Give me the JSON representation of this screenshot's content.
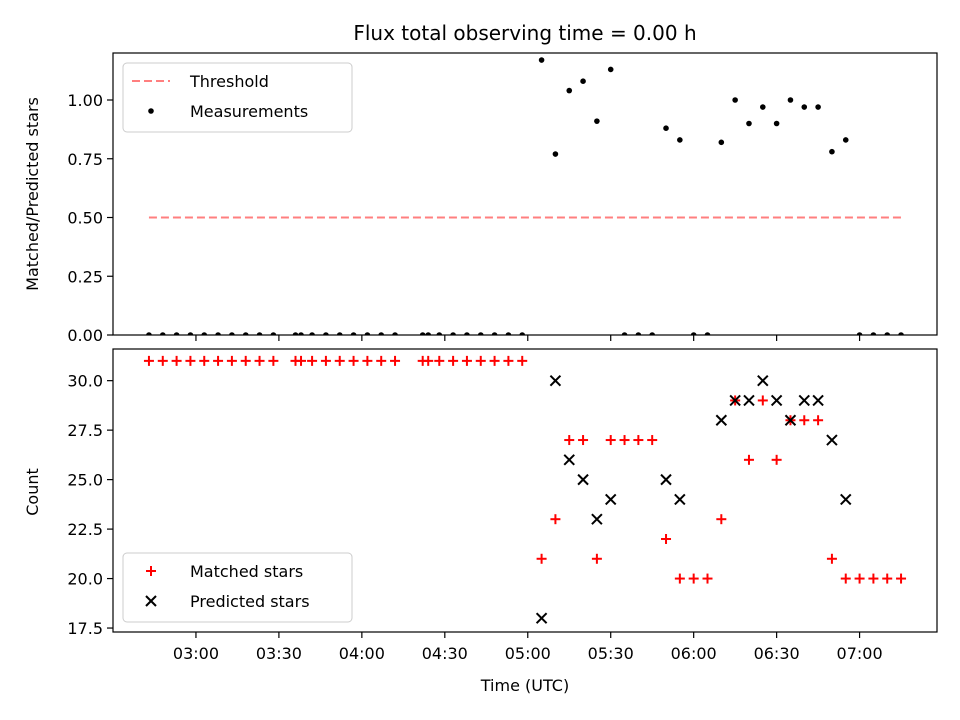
{
  "title": "Flux total observing time = 0.00 h",
  "x_axis": {
    "label": "Time (UTC)",
    "ticks": [
      "03:00",
      "03:30",
      "04:00",
      "04:30",
      "05:00",
      "05:30",
      "06:00",
      "06:30",
      "07:00"
    ]
  },
  "chart_data": [
    {
      "type": "scatter",
      "panel": "top",
      "ylabel": "Matched/Predicted stars",
      "xlim": [
        "02:30",
        "07:28"
      ],
      "ylim": [
        0,
        1.2
      ],
      "yticks": [
        "0.00",
        "0.25",
        "0.50",
        "0.75",
        "1.00"
      ],
      "legend_position": "upper-left",
      "series": [
        {
          "name": "Threshold",
          "kind": "dashed-line",
          "color": "#ff7f7f",
          "points": [
            {
              "t": "02:43",
              "v": 0.5
            },
            {
              "t": "07:15",
              "v": 0.5
            }
          ]
        },
        {
          "name": "Measurements",
          "kind": "dot",
          "color": "#000000",
          "points": [
            {
              "t": "02:43",
              "v": 0
            },
            {
              "t": "02:48",
              "v": 0
            },
            {
              "t": "02:53",
              "v": 0
            },
            {
              "t": "02:58",
              "v": 0
            },
            {
              "t": "03:03",
              "v": 0
            },
            {
              "t": "03:08",
              "v": 0
            },
            {
              "t": "03:13",
              "v": 0
            },
            {
              "t": "03:18",
              "v": 0
            },
            {
              "t": "03:23",
              "v": 0
            },
            {
              "t": "03:28",
              "v": 0
            },
            {
              "t": "03:36",
              "v": 0
            },
            {
              "t": "03:38",
              "v": 0
            },
            {
              "t": "03:42",
              "v": 0
            },
            {
              "t": "03:47",
              "v": 0
            },
            {
              "t": "03:52",
              "v": 0
            },
            {
              "t": "03:57",
              "v": 0
            },
            {
              "t": "04:02",
              "v": 0
            },
            {
              "t": "04:07",
              "v": 0
            },
            {
              "t": "04:12",
              "v": 0
            },
            {
              "t": "04:22",
              "v": 0
            },
            {
              "t": "04:24",
              "v": 0
            },
            {
              "t": "04:28",
              "v": 0
            },
            {
              "t": "04:33",
              "v": 0
            },
            {
              "t": "04:38",
              "v": 0
            },
            {
              "t": "04:43",
              "v": 0
            },
            {
              "t": "04:48",
              "v": 0
            },
            {
              "t": "04:53",
              "v": 0
            },
            {
              "t": "04:58",
              "v": 0
            },
            {
              "t": "05:05",
              "v": 1.17
            },
            {
              "t": "05:10",
              "v": 0.77
            },
            {
              "t": "05:15",
              "v": 1.04
            },
            {
              "t": "05:20",
              "v": 1.08
            },
            {
              "t": "05:25",
              "v": 0.91
            },
            {
              "t": "05:30",
              "v": 1.13
            },
            {
              "t": "05:35",
              "v": 0
            },
            {
              "t": "05:40",
              "v": 0
            },
            {
              "t": "05:45",
              "v": 0
            },
            {
              "t": "05:50",
              "v": 0.88
            },
            {
              "t": "05:55",
              "v": 0.83
            },
            {
              "t": "06:00",
              "v": 0
            },
            {
              "t": "06:05",
              "v": 0
            },
            {
              "t": "06:10",
              "v": 0.82
            },
            {
              "t": "06:15",
              "v": 1.0
            },
            {
              "t": "06:20",
              "v": 0.9
            },
            {
              "t": "06:25",
              "v": 0.97
            },
            {
              "t": "06:30",
              "v": 0.9
            },
            {
              "t": "06:35",
              "v": 1.0
            },
            {
              "t": "06:40",
              "v": 0.97
            },
            {
              "t": "06:45",
              "v": 0.97
            },
            {
              "t": "06:50",
              "v": 0.78
            },
            {
              "t": "06:55",
              "v": 0.83
            },
            {
              "t": "07:00",
              "v": 0
            },
            {
              "t": "07:05",
              "v": 0
            },
            {
              "t": "07:10",
              "v": 0
            },
            {
              "t": "07:15",
              "v": 0
            }
          ]
        }
      ]
    },
    {
      "type": "scatter",
      "panel": "bottom",
      "ylabel": "Count",
      "xlim": [
        "02:30",
        "07:28"
      ],
      "ylim": [
        17.3,
        31.6
      ],
      "yticks": [
        "17.5",
        "20.0",
        "22.5",
        "25.0",
        "27.5",
        "30.0"
      ],
      "legend_position": "lower-left",
      "series": [
        {
          "name": "Matched stars",
          "kind": "plus",
          "color": "#ff0000",
          "points": [
            {
              "t": "02:43",
              "v": 31
            },
            {
              "t": "02:48",
              "v": 31
            },
            {
              "t": "02:53",
              "v": 31
            },
            {
              "t": "02:58",
              "v": 31
            },
            {
              "t": "03:03",
              "v": 31
            },
            {
              "t": "03:08",
              "v": 31
            },
            {
              "t": "03:13",
              "v": 31
            },
            {
              "t": "03:18",
              "v": 31
            },
            {
              "t": "03:23",
              "v": 31
            },
            {
              "t": "03:28",
              "v": 31
            },
            {
              "t": "03:36",
              "v": 31
            },
            {
              "t": "03:38",
              "v": 31
            },
            {
              "t": "03:42",
              "v": 31
            },
            {
              "t": "03:47",
              "v": 31
            },
            {
              "t": "03:52",
              "v": 31
            },
            {
              "t": "03:57",
              "v": 31
            },
            {
              "t": "04:02",
              "v": 31
            },
            {
              "t": "04:07",
              "v": 31
            },
            {
              "t": "04:12",
              "v": 31
            },
            {
              "t": "04:22",
              "v": 31
            },
            {
              "t": "04:24",
              "v": 31
            },
            {
              "t": "04:28",
              "v": 31
            },
            {
              "t": "04:33",
              "v": 31
            },
            {
              "t": "04:38",
              "v": 31
            },
            {
              "t": "04:43",
              "v": 31
            },
            {
              "t": "04:48",
              "v": 31
            },
            {
              "t": "04:53",
              "v": 31
            },
            {
              "t": "04:58",
              "v": 31
            },
            {
              "t": "05:05",
              "v": 21
            },
            {
              "t": "05:10",
              "v": 23
            },
            {
              "t": "05:15",
              "v": 27
            },
            {
              "t": "05:20",
              "v": 27
            },
            {
              "t": "05:25",
              "v": 21
            },
            {
              "t": "05:30",
              "v": 27
            },
            {
              "t": "05:35",
              "v": 27
            },
            {
              "t": "05:40",
              "v": 27
            },
            {
              "t": "05:45",
              "v": 27
            },
            {
              "t": "05:50",
              "v": 22
            },
            {
              "t": "05:55",
              "v": 20
            },
            {
              "t": "06:00",
              "v": 20
            },
            {
              "t": "06:05",
              "v": 20
            },
            {
              "t": "06:10",
              "v": 23
            },
            {
              "t": "06:15",
              "v": 29
            },
            {
              "t": "06:20",
              "v": 26
            },
            {
              "t": "06:25",
              "v": 29
            },
            {
              "t": "06:30",
              "v": 26
            },
            {
              "t": "06:35",
              "v": 28
            },
            {
              "t": "06:40",
              "v": 28
            },
            {
              "t": "06:45",
              "v": 28
            },
            {
              "t": "06:50",
              "v": 21
            },
            {
              "t": "06:55",
              "v": 20
            },
            {
              "t": "07:00",
              "v": 20
            },
            {
              "t": "07:05",
              "v": 20
            },
            {
              "t": "07:10",
              "v": 20
            },
            {
              "t": "07:15",
              "v": 20
            }
          ]
        },
        {
          "name": "Predicted stars",
          "kind": "x",
          "color": "#000000",
          "points": [
            {
              "t": "05:05",
              "v": 18
            },
            {
              "t": "05:10",
              "v": 30
            },
            {
              "t": "05:15",
              "v": 26
            },
            {
              "t": "05:20",
              "v": 25
            },
            {
              "t": "05:25",
              "v": 23
            },
            {
              "t": "05:30",
              "v": 24
            },
            {
              "t": "05:50",
              "v": 25
            },
            {
              "t": "05:55",
              "v": 24
            },
            {
              "t": "06:10",
              "v": 28
            },
            {
              "t": "06:15",
              "v": 29
            },
            {
              "t": "06:20",
              "v": 29
            },
            {
              "t": "06:25",
              "v": 30
            },
            {
              "t": "06:30",
              "v": 29
            },
            {
              "t": "06:35",
              "v": 28
            },
            {
              "t": "06:40",
              "v": 29
            },
            {
              "t": "06:45",
              "v": 29
            },
            {
              "t": "06:50",
              "v": 27
            },
            {
              "t": "06:55",
              "v": 24
            }
          ]
        }
      ]
    }
  ]
}
